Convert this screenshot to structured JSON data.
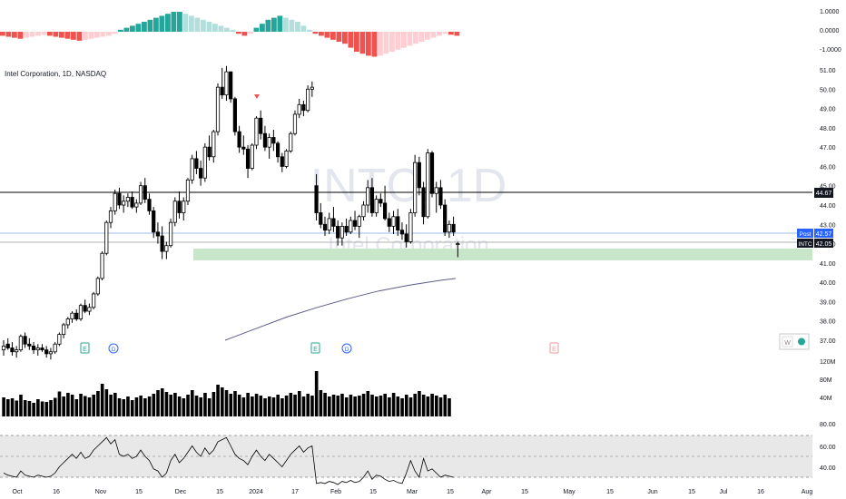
{
  "header": {
    "symbol_title": "Intel Corporation, 1D, NASDAQ"
  },
  "watermark": {
    "ticker": "INTC, 1D",
    "name": "Intel Corporation"
  },
  "oscillator_axis": [
    "1.0000",
    "0.0000",
    "-1.0000"
  ],
  "price_axis": [
    "51.00",
    "50.00",
    "49.00",
    "48.00",
    "47.00",
    "46.00",
    "45.00",
    "44.00",
    "43.00",
    "42.00",
    "41.00",
    "40.00",
    "39.00",
    "38.00",
    "37.00"
  ],
  "price_labels": {
    "line_level": "44.67",
    "post_tag": "Post",
    "post_value": "42.57",
    "ticker_tag": "INTC",
    "last_value": "42.05"
  },
  "volume_axis": [
    "120M",
    "80M",
    "40M"
  ],
  "rsi_axis": [
    "80.00",
    "60.00",
    "40.00"
  ],
  "time_axis": [
    "Oct",
    "16",
    "Nov",
    "15",
    "Dec",
    "15",
    "2024",
    "17",
    "Feb",
    "15",
    "Mar",
    "15",
    "Apr",
    "15",
    "May",
    "15",
    "Jun",
    "15",
    "Jul",
    "16",
    "Aug"
  ],
  "event_markers": {
    "earnings": "E",
    "dividend": "D"
  },
  "toolbar": {
    "w_label": "W"
  },
  "colors": {
    "up": "#ffffff",
    "down": "#000000",
    "osc_pos_strong": "#26a69a",
    "osc_pos_weak": "#b2dfdb",
    "osc_neg_strong": "#ef5350",
    "osc_neg_weak": "#ffcdd2",
    "support_zone": "#c8e6c9",
    "ma_line": "#5c5c8a",
    "rsi_band": "#e8e8e8",
    "watermark": "#e3e6ee"
  },
  "chart_data": {
    "type": "candlestick",
    "title": "Intel Corporation, 1D, NASDAQ",
    "ylim": [
      36.5,
      51.5
    ],
    "x": [
      "Oct",
      "16",
      "Nov",
      "15",
      "Dec",
      "15",
      "2024",
      "17",
      "Feb",
      "15",
      "Mar",
      "15",
      "Apr",
      "15",
      "May",
      "15",
      "Jun",
      "15",
      "Jul",
      "16",
      "Aug"
    ],
    "candles": [
      [
        36.5,
        37.0,
        36.2,
        36.7
      ],
      [
        36.8,
        37.1,
        36.5,
        36.6
      ],
      [
        36.6,
        36.9,
        36.2,
        36.4
      ],
      [
        36.4,
        36.7,
        36.1,
        36.5
      ],
      [
        36.5,
        37.3,
        36.4,
        37.2
      ],
      [
        37.2,
        37.4,
        36.6,
        36.8
      ],
      [
        36.8,
        37.1,
        36.5,
        36.7
      ],
      [
        36.7,
        36.9,
        36.3,
        36.5
      ],
      [
        36.5,
        36.8,
        36.2,
        36.6
      ],
      [
        36.6,
        36.8,
        36.4,
        36.5
      ],
      [
        36.5,
        36.7,
        36.1,
        36.3
      ],
      [
        36.3,
        36.6,
        36.0,
        36.4
      ],
      [
        36.4,
        36.9,
        36.3,
        36.8
      ],
      [
        36.8,
        37.4,
        36.7,
        37.3
      ],
      [
        37.3,
        37.9,
        37.1,
        37.8
      ],
      [
        37.8,
        38.2,
        37.6,
        38.1
      ],
      [
        38.1,
        38.5,
        37.9,
        38.4
      ],
      [
        38.4,
        38.6,
        38.0,
        38.1
      ],
      [
        38.1,
        38.9,
        38.0,
        38.8
      ],
      [
        38.8,
        39.1,
        38.4,
        38.5
      ],
      [
        38.5,
        38.9,
        38.3,
        38.7
      ],
      [
        38.7,
        39.5,
        38.6,
        39.4
      ],
      [
        39.4,
        40.3,
        39.3,
        40.2
      ],
      [
        40.2,
        41.6,
        40.1,
        41.5
      ],
      [
        41.5,
        43.2,
        41.4,
        43.1
      ],
      [
        43.1,
        43.9,
        42.8,
        43.7
      ],
      [
        43.7,
        44.8,
        43.5,
        44.6
      ],
      [
        44.6,
        44.9,
        43.8,
        44.0
      ],
      [
        44.0,
        44.5,
        43.6,
        44.2
      ],
      [
        44.2,
        44.6,
        43.9,
        44.4
      ],
      [
        44.4,
        44.7,
        43.8,
        43.9
      ],
      [
        43.9,
        44.3,
        43.6,
        44.1
      ],
      [
        44.1,
        45.2,
        44.0,
        45.0
      ],
      [
        45.0,
        45.4,
        44.1,
        44.3
      ],
      [
        44.3,
        44.6,
        43.5,
        43.7
      ],
      [
        43.7,
        43.9,
        42.3,
        42.6
      ],
      [
        42.6,
        43.1,
        42.0,
        42.4
      ],
      [
        42.4,
        42.9,
        41.2,
        41.6
      ],
      [
        41.6,
        42.1,
        41.2,
        41.9
      ],
      [
        41.9,
        43.3,
        41.8,
        43.1
      ],
      [
        43.1,
        44.4,
        42.9,
        44.2
      ],
      [
        44.2,
        44.7,
        43.3,
        43.6
      ],
      [
        43.6,
        44.4,
        43.2,
        44.2
      ],
      [
        44.2,
        45.4,
        44.0,
        45.3
      ],
      [
        45.3,
        46.6,
        45.1,
        46.4
      ],
      [
        46.4,
        46.8,
        45.6,
        45.9
      ],
      [
        45.9,
        46.3,
        45.0,
        45.4
      ],
      [
        45.4,
        47.2,
        45.2,
        47.0
      ],
      [
        47.0,
        47.6,
        46.3,
        46.5
      ],
      [
        46.5,
        47.9,
        46.2,
        47.8
      ],
      [
        47.8,
        50.3,
        47.6,
        50.1
      ],
      [
        50.1,
        51.1,
        49.5,
        49.7
      ],
      [
        49.7,
        51.2,
        49.4,
        50.9
      ],
      [
        50.9,
        50.9,
        49.3,
        49.5
      ],
      [
        49.5,
        49.6,
        47.6,
        47.8
      ],
      [
        47.8,
        48.1,
        46.7,
        47.0
      ],
      [
        47.0,
        47.6,
        46.6,
        46.9
      ],
      [
        46.9,
        47.1,
        45.4,
        45.9
      ],
      [
        45.9,
        47.2,
        45.8,
        47.1
      ],
      [
        47.1,
        48.6,
        46.9,
        48.5
      ],
      [
        48.5,
        48.9,
        47.4,
        47.7
      ],
      [
        47.7,
        48.1,
        46.8,
        47.0
      ],
      [
        47.0,
        47.7,
        46.4,
        47.5
      ],
      [
        47.5,
        47.9,
        46.8,
        47.2
      ],
      [
        47.2,
        47.3,
        46.2,
        46.5
      ],
      [
        46.5,
        46.7,
        45.7,
        46.0
      ],
      [
        46.0,
        46.9,
        45.9,
        46.8
      ],
      [
        46.8,
        47.8,
        46.7,
        47.7
      ],
      [
        47.7,
        48.9,
        47.6,
        48.7
      ],
      [
        48.7,
        49.5,
        48.5,
        49.2
      ],
      [
        49.2,
        49.4,
        48.6,
        48.9
      ],
      [
        48.9,
        50.2,
        48.8,
        50.0
      ],
      [
        50.0,
        50.4,
        49.6,
        50.1
      ],
      [
        45.0,
        45.6,
        43.2,
        43.6
      ],
      [
        43.6,
        44.1,
        42.8,
        43.0
      ],
      [
        43.0,
        43.4,
        42.4,
        42.7
      ],
      [
        42.7,
        43.6,
        42.5,
        43.3
      ],
      [
        43.3,
        43.9,
        42.6,
        42.9
      ],
      [
        42.9,
        43.2,
        41.9,
        42.3
      ],
      [
        42.3,
        43.1,
        41.9,
        42.9
      ],
      [
        42.9,
        43.3,
        42.4,
        42.6
      ],
      [
        42.6,
        43.4,
        42.5,
        43.2
      ],
      [
        43.2,
        43.7,
        42.7,
        42.9
      ],
      [
        42.9,
        43.5,
        42.3,
        43.4
      ],
      [
        43.4,
        44.2,
        43.2,
        44.0
      ],
      [
        44.0,
        45.3,
        43.6,
        44.9
      ],
      [
        44.9,
        45.4,
        43.4,
        43.6
      ],
      [
        43.6,
        44.5,
        43.4,
        44.3
      ],
      [
        44.3,
        44.6,
        43.9,
        44.1
      ],
      [
        44.1,
        45.0,
        43.2,
        43.3
      ],
      [
        43.3,
        43.6,
        42.6,
        42.9
      ],
      [
        42.9,
        43.7,
        42.5,
        43.4
      ],
      [
        43.4,
        43.8,
        42.4,
        42.7
      ],
      [
        42.7,
        43.1,
        42.2,
        42.5
      ],
      [
        42.5,
        43.0,
        41.8,
        42.1
      ],
      [
        42.1,
        43.8,
        42.0,
        43.6
      ],
      [
        43.6,
        46.6,
        43.4,
        46.2
      ],
      [
        46.2,
        46.5,
        44.5,
        44.9
      ],
      [
        44.9,
        45.2,
        43.0,
        43.4
      ],
      [
        43.4,
        46.9,
        43.3,
        46.7
      ],
      [
        46.7,
        46.8,
        44.4,
        44.6
      ],
      [
        44.6,
        45.2,
        43.6,
        44.9
      ],
      [
        44.9,
        45.3,
        43.8,
        44.0
      ],
      [
        44.0,
        44.3,
        42.4,
        42.6
      ],
      [
        42.6,
        43.2,
        42.3,
        43.0
      ],
      [
        43.0,
        43.4,
        42.4,
        42.6
      ],
      [
        42.0,
        42.1,
        41.3,
        42.0
      ]
    ],
    "volume_m": [
      42,
      38,
      40,
      35,
      48,
      36,
      34,
      30,
      38,
      33,
      32,
      36,
      41,
      55,
      44,
      52,
      48,
      38,
      50,
      45,
      42,
      48,
      56,
      72,
      60,
      48,
      52,
      40,
      38,
      44,
      36,
      42,
      46,
      40,
      44,
      50,
      58,
      62,
      54,
      48,
      52,
      44,
      40,
      48,
      58,
      46,
      42,
      52,
      40,
      54,
      70,
      64,
      58,
      50,
      56,
      48,
      42,
      52,
      44,
      50,
      46,
      40,
      44,
      42,
      48,
      40,
      46,
      52,
      48,
      56,
      44,
      50,
      46,
      100,
      58,
      52,
      44,
      48,
      46,
      50,
      42,
      48,
      44,
      46,
      50,
      56,
      48,
      44,
      46,
      50,
      42,
      52,
      44,
      40,
      48,
      42,
      50,
      56,
      48,
      44,
      50,
      46,
      42,
      48,
      40
    ],
    "moving_average": [
      [
        0.45,
        37.0
      ],
      [
        0.55,
        37.6
      ],
      [
        0.65,
        38.2
      ],
      [
        0.75,
        38.7
      ],
      [
        0.85,
        39.15
      ],
      [
        0.95,
        39.55
      ],
      [
        1.05,
        39.85
      ],
      [
        1.15,
        40.1
      ],
      [
        1.2,
        40.2
      ]
    ],
    "rsi": [
      44,
      42,
      41,
      40,
      46,
      42,
      41,
      40,
      42,
      41,
      40,
      41,
      44,
      50,
      54,
      58,
      62,
      58,
      64,
      58,
      60,
      66,
      70,
      74,
      78,
      72,
      76,
      62,
      60,
      62,
      58,
      60,
      66,
      60,
      56,
      48,
      46,
      40,
      44,
      56,
      62,
      54,
      58,
      64,
      70,
      64,
      60,
      68,
      62,
      66,
      74,
      76,
      78,
      70,
      62,
      58,
      56,
      52,
      60,
      66,
      60,
      56,
      62,
      58,
      54,
      50,
      56,
      62,
      66,
      70,
      64,
      68,
      70,
      34,
      35,
      34,
      36,
      35,
      33,
      36,
      35,
      37,
      35,
      36,
      40,
      46,
      38,
      42,
      41,
      38,
      36,
      37,
      35,
      34,
      44,
      56,
      46,
      40,
      58,
      46,
      48,
      44,
      40,
      42,
      41,
      40
    ],
    "oscillator": [
      -0.2,
      -0.25,
      -0.3,
      -0.35,
      -0.3,
      -0.25,
      -0.2,
      -0.15,
      -0.2,
      -0.25,
      -0.3,
      -0.35,
      -0.4,
      -0.45,
      -0.4,
      -0.35,
      -0.3,
      -0.25,
      -0.2,
      -0.1,
      0.1,
      0.2,
      0.3,
      0.4,
      0.5,
      0.6,
      0.7,
      0.8,
      0.9,
      1.0,
      1.0,
      0.9,
      0.8,
      0.7,
      0.6,
      0.5,
      0.4,
      0.3,
      0.2,
      0.1,
      -0.1,
      -0.2,
      -0.1,
      0.2,
      0.4,
      0.6,
      0.7,
      0.8,
      0.7,
      0.6,
      0.5,
      0.3,
      0.1,
      -0.1,
      -0.2,
      -0.3,
      -0.4,
      -0.5,
      -0.6,
      -0.8,
      -1.0,
      -1.1,
      -1.2,
      -1.25,
      -1.2,
      -1.1,
      -1.0,
      -0.9,
      -0.8,
      -0.7,
      -0.6,
      -0.5,
      -0.4,
      -0.3,
      -0.2,
      -0.1,
      -0.15,
      -0.2
    ],
    "horizontal_line": 44.67,
    "post_line": 42.57,
    "last_price": 42.05,
    "support_zone": [
      41.2,
      41.8
    ]
  }
}
